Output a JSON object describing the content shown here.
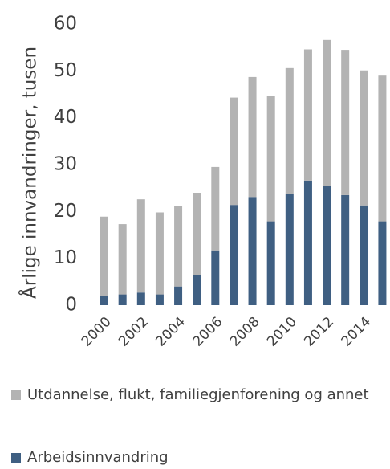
{
  "chart_data": {
    "type": "stacked_bar",
    "y_label": "Årlige innvandringer, tusen",
    "categories": [
      "2000",
      null,
      "2002",
      null,
      "2004",
      null,
      "2006",
      null,
      "2008",
      null,
      "2010",
      null,
      "2012",
      null,
      "2014",
      null
    ],
    "series": [
      {
        "name": "Arbeidsinnvandring",
        "color": "#3f5f82",
        "values": [
          1.9,
          2.3,
          2.7,
          2.3,
          4.0,
          6.5,
          11.7,
          21.4,
          23.1,
          17.9,
          23.8,
          26.6,
          25.5,
          23.5,
          21.3,
          17.9
        ]
      },
      {
        "name": "Utdannelse, flukt, familiegjenforening og annet",
        "color": "#b3b3b3",
        "values": [
          17.0,
          15.0,
          19.9,
          17.5,
          17.2,
          17.5,
          17.8,
          22.9,
          25.6,
          26.7,
          26.8,
          28.0,
          31.1,
          31.0,
          28.8,
          31.1
        ]
      }
    ],
    "ylim": [
      0,
      60
    ],
    "yticks": [
      0,
      10,
      20,
      30,
      40,
      50,
      60
    ],
    "grid": false
  }
}
